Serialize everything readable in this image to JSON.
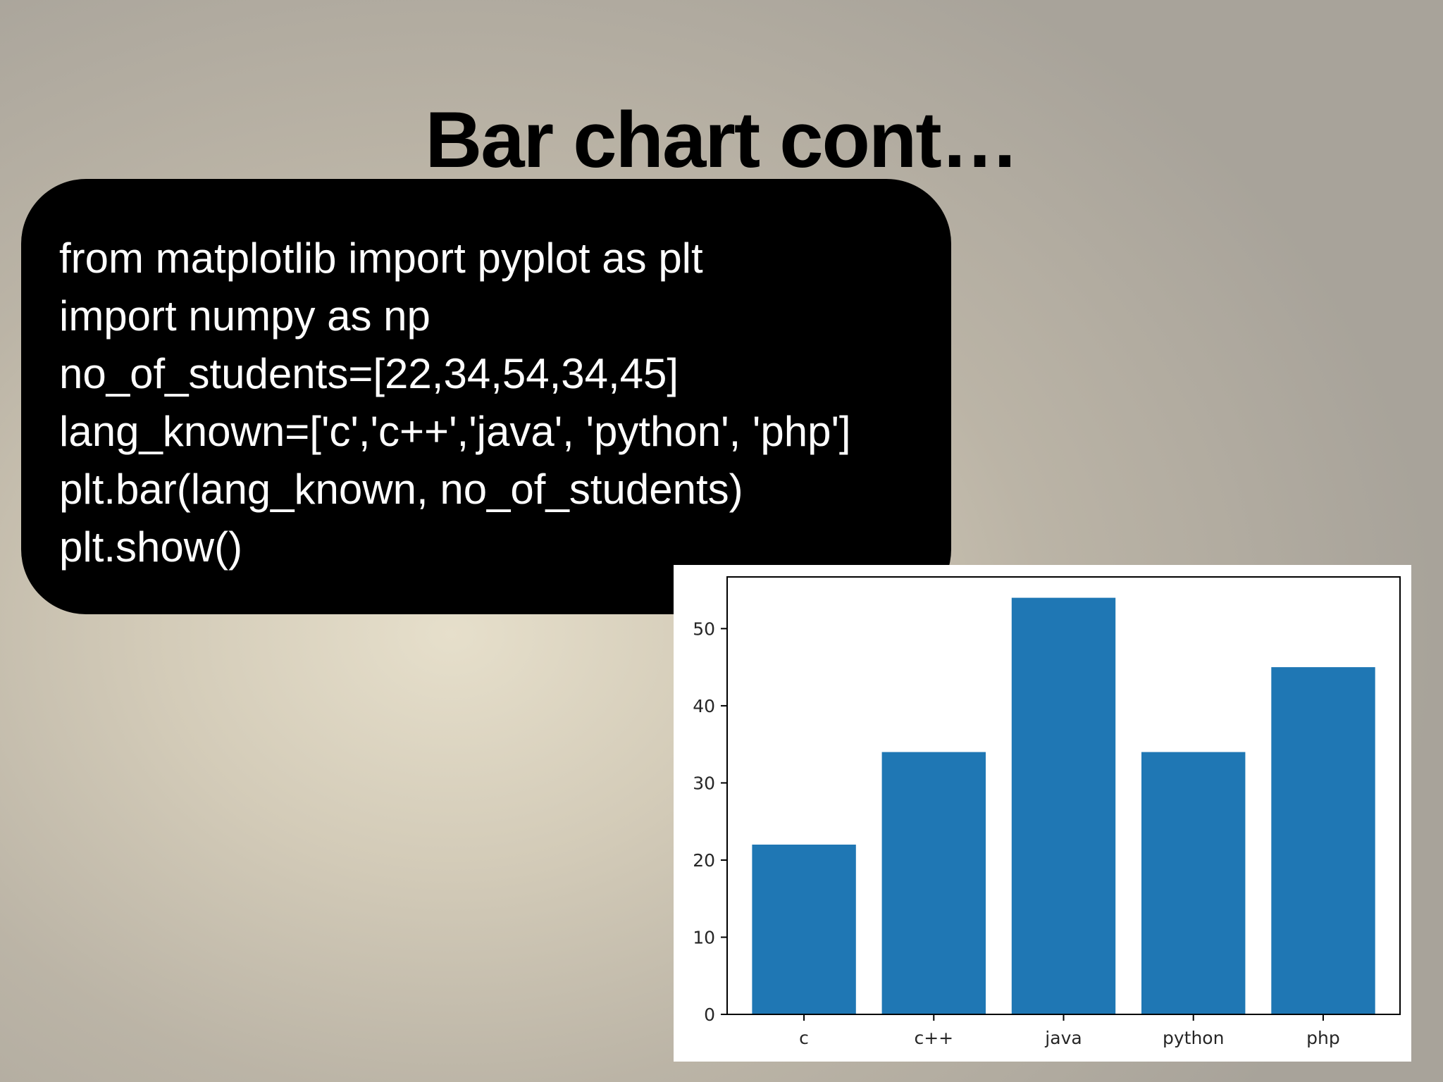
{
  "slide": {
    "title": "Bar chart cont…"
  },
  "code": {
    "lines": [
      "from matplotlib import pyplot as plt",
      "import numpy as np",
      "no_of_students=[22,34,54,34,45]",
      "lang_known=['c','c++','java', 'python', 'php']",
      "plt.bar(lang_known, no_of_students)",
      "plt.show()"
    ]
  },
  "chart_data": {
    "type": "bar",
    "categories": [
      "c",
      "c++",
      "java",
      "python",
      "php"
    ],
    "values": [
      22,
      34,
      54,
      34,
      45
    ],
    "title": "",
    "xlabel": "",
    "ylabel": "",
    "ylim": [
      0,
      56.7
    ],
    "yticks": [
      0,
      10,
      20,
      30,
      40,
      50
    ],
    "grid": false,
    "bar_color": "#1f77b4"
  },
  "colors": {
    "code_background": "#000000",
    "code_text": "#ffffff",
    "title_text": "#000000"
  }
}
